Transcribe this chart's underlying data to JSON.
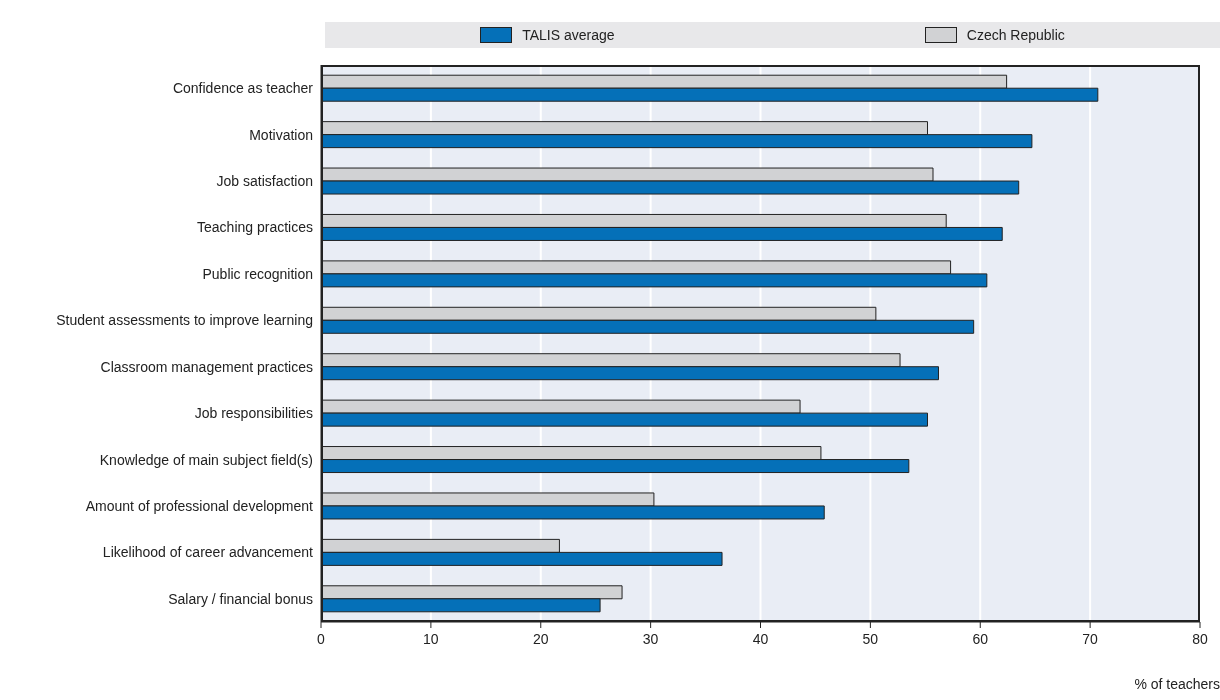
{
  "chart_data": {
    "type": "bar",
    "orientation": "horizontal",
    "xlabel": "% of teachers",
    "categories": [
      "Confidence as teacher",
      "Motivation",
      "Job satisfaction",
      "Teaching practices",
      "Public recognition",
      "Student assessments to improve learning",
      "Classroom management practices",
      "Job responsibilities",
      "Knowledge of main subject field(s)",
      "Amount of professional development",
      "Likelihood of career advancement",
      "Salary / financial bonus"
    ],
    "series": [
      {
        "name": "TALIS average",
        "color": "#0570b8",
        "values": [
          70.7,
          64.7,
          63.5,
          62.0,
          60.6,
          59.4,
          56.2,
          55.2,
          53.5,
          45.8,
          36.5,
          25.4
        ]
      },
      {
        "name": "Czech Republic",
        "color": "#d1d2d4",
        "values": [
          62.4,
          55.2,
          55.7,
          56.9,
          57.3,
          50.5,
          52.7,
          43.6,
          45.5,
          30.3,
          21.7,
          27.4
        ]
      }
    ],
    "xlim": [
      0,
      80
    ],
    "xticks": [
      0,
      10,
      20,
      30,
      40,
      50,
      60,
      70,
      80
    ],
    "grid": "x",
    "legend": "top"
  }
}
